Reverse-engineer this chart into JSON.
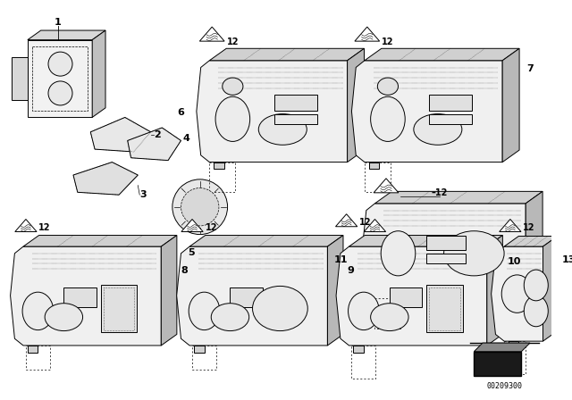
{
  "bg_color": "#ffffff",
  "line_color": "#000000",
  "part_number_text": "00209300",
  "fig_width": 6.4,
  "fig_height": 4.48,
  "dpi": 100
}
